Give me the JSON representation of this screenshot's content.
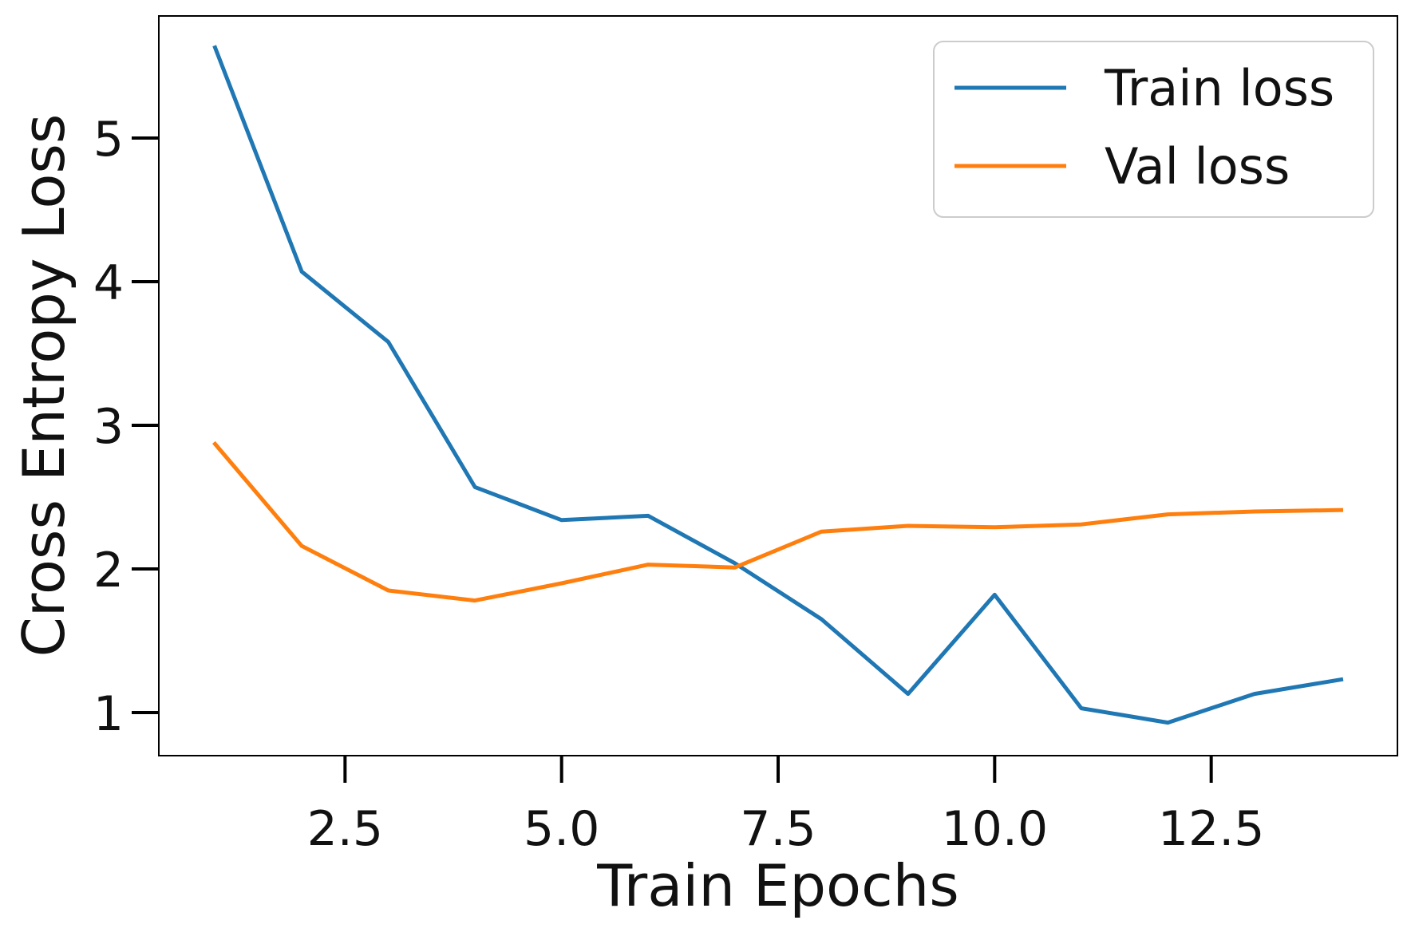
{
  "chart_data": {
    "type": "line",
    "xlabel": "Train Epochs",
    "ylabel": "Cross Entropy Loss",
    "x": [
      1,
      2,
      3,
      4,
      5,
      6,
      7,
      8,
      9,
      10,
      11,
      12,
      13,
      14
    ],
    "series": [
      {
        "name": "Train loss",
        "color": "#1f77b4",
        "values": [
          5.63,
          4.07,
          3.58,
          2.57,
          2.34,
          2.37,
          2.04,
          1.65,
          1.13,
          1.82,
          1.03,
          0.93,
          1.13,
          1.23
        ]
      },
      {
        "name": "Val loss",
        "color": "#ff7f0e",
        "values": [
          2.87,
          2.16,
          1.85,
          1.78,
          1.9,
          2.03,
          2.01,
          2.26,
          2.3,
          2.29,
          2.31,
          2.38,
          2.4,
          2.41
        ]
      }
    ],
    "xlim": [
      0.35,
      14.65
    ],
    "ylim": [
      0.7,
      5.85
    ],
    "xticks": [
      2.5,
      5.0,
      7.5,
      10.0,
      12.5
    ],
    "xtick_labels": [
      "2.5",
      "5.0",
      "7.5",
      "10.0",
      "12.5"
    ],
    "yticks": [
      1,
      2,
      3,
      4,
      5
    ],
    "ytick_labels": [
      "1",
      "2",
      "3",
      "4",
      "5"
    ],
    "grid": false,
    "legend_position": "top-right"
  }
}
